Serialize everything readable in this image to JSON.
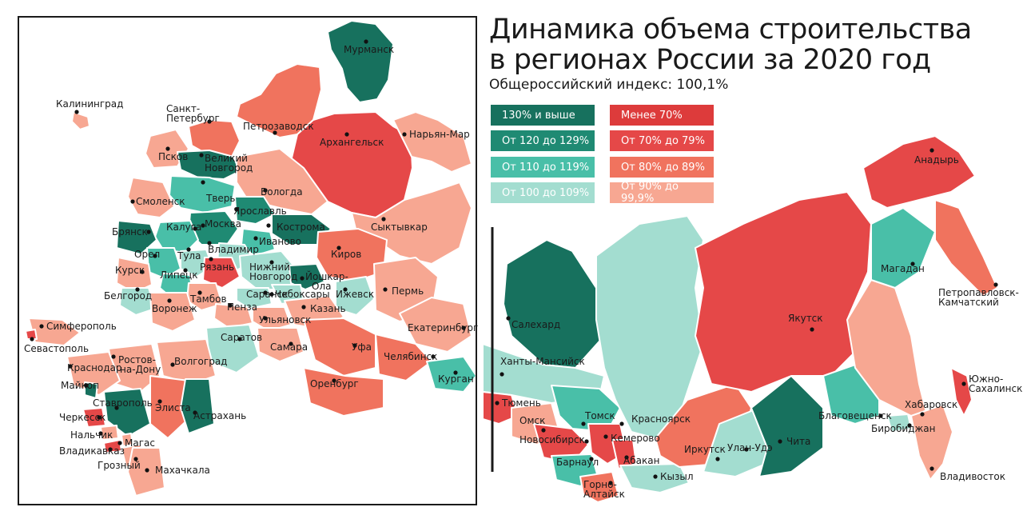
{
  "title_line1": "Динамика объема строительства",
  "title_line2": "в регионах России за 2020 год",
  "subtitle": "Общероссийский индекс: 100,1%",
  "colors": {
    "c130": "#17715e",
    "c120": "#1f8a73",
    "c110": "#49bfa8",
    "c100": "#a3ddd0",
    "c70less": "#dd3b3b",
    "c70": "#e54848",
    "c80": "#f0735e",
    "c90": "#f7a792"
  },
  "legend": [
    {
      "label": "130% и выше",
      "color": "#17715e"
    },
    {
      "label": "От 120 до 129%",
      "color": "#1f8a73"
    },
    {
      "label": "От 110 до 119%",
      "color": "#49bfa8"
    },
    {
      "label": "От 100 до 109%",
      "color": "#a3ddd0"
    },
    {
      "label": "Менее 70%",
      "color": "#dd3b3b"
    },
    {
      "label": "От 70% до 79%",
      "color": "#e54848"
    },
    {
      "label": "От 80% до 89%",
      "color": "#f0735e"
    },
    {
      "label": "От 90% до 99,9%",
      "color": "#f7a792"
    }
  ],
  "cities": {
    "murmansk": "Мурманск",
    "kaliningrad": "Калининград",
    "spb1": "Санкт-",
    "spb2": "Петербург",
    "petrozavodsk": "Петрозаводск",
    "arkhangelsk": "Архангельск",
    "naryanmar": "Нарьян-Мар",
    "pskov": "Псков",
    "novgorod1": "Великий",
    "novgorod2": "Новгород",
    "vologda": "Вологда",
    "smolensk": "Смоленск",
    "tver": "Тверь",
    "yaroslavl": "Ярославль",
    "syktyvkar": "Сыктывкар",
    "kaluga": "Калуга",
    "moskva": "Москва",
    "kostroma": "Кострома",
    "bryansk": "Брянск",
    "ivanovo": "Иваново",
    "tula": "Тула",
    "vladimir": "Владимир",
    "orel": "Орел",
    "ryazan": "Рязань",
    "kirov": "Киров",
    "kursk": "Курск",
    "lipetsk": "Липецк",
    "nnovgorod1": "Нижний",
    "nnovgorod2": "Новгород",
    "yoshkar1": "Йошкар-",
    "yoshkar2": "Ола",
    "perm": "Пермь",
    "belgorod": "Белгород",
    "tambov": "Тамбов",
    "saransk": "Саранск",
    "cheboksary": "Чебоксары",
    "izhevsk": "Ижевск",
    "voronezh": "Воронеж",
    "penza": "Пенза",
    "kazan": "Казань",
    "simferopol": "Симферополь",
    "ulyanovsk": "Ульяновск",
    "ekaterinburg": "Екатеринбург",
    "sevastopol": "Севастополь",
    "saratov": "Саратов",
    "rostov1": "Ростов-",
    "rostov2": "на-Дону",
    "samara": "Самара",
    "ufa": "Уфа",
    "chelyabinsk": "Челябинск",
    "krasnodar": "Краснодар",
    "volgograd": "Волгоград",
    "kurgan": "Курган",
    "maykop": "Майкоп",
    "orenburg": "Оренбург",
    "stavropol": "Ставрополь",
    "elista": "Элиста",
    "cherkessk": "Черкесск",
    "astrakhan": "Астрахань",
    "nalchik": "Нальчик",
    "magas": "Магас",
    "vladikavkaz": "Владикавказ",
    "grozny": "Грозный",
    "makhachkala": "Махачкала",
    "anadyr": "Анадырь",
    "salekhard": "Салехард",
    "magadan": "Магадан",
    "petropavlovsk1": "Петропавловск-",
    "petropavlovsk2": "Камчатский",
    "yakutsk": "Якутск",
    "khanty": "Ханты-Мансийск",
    "yuzhno1": "Южно-",
    "yuzhno2": "Сахалинск",
    "tyumen": "Тюмень",
    "khabarovsk": "Хабаровск",
    "tomsk": "Томск",
    "krasnoyarsk": "Красноярск",
    "blagoveshchensk": "Благовещенск",
    "omsk": "Омск",
    "novosibirsk": "Новосибирск",
    "kemerovo": "Кемерово",
    "birobidzhan": "Биробиджан",
    "irkutsk": "Иркутск",
    "ulanude": "Улан-Удэ",
    "chita": "Чита",
    "barnaul": "Барнаул",
    "abakan": "Абакан",
    "kyzyl": "Кызыл",
    "vladivostok": "Владивосток",
    "gornoaltaysk1": "Горно-",
    "gornoaltaysk2": "Алтайск"
  }
}
